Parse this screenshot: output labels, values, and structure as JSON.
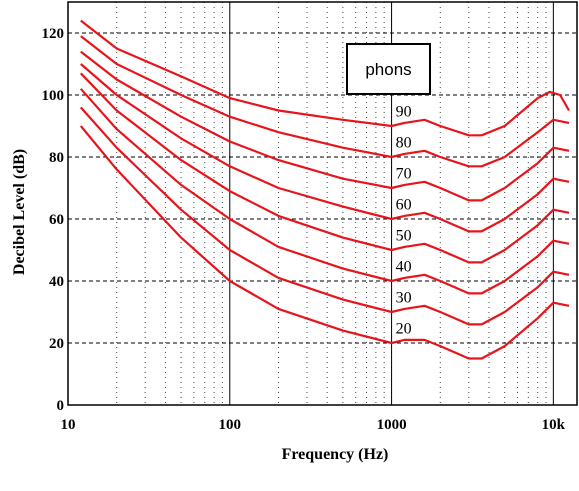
{
  "chart_data": {
    "type": "line",
    "xscale": "log",
    "xlabel": "Frequency (Hz)",
    "ylabel": "Decibel Level (dB)",
    "xlim": [
      10,
      14000
    ],
    "ylim": [
      0,
      130
    ],
    "x_ticks": [
      {
        "value": 10,
        "label": "10"
      },
      {
        "value": 100,
        "label": "100"
      },
      {
        "value": 1000,
        "label": "1000"
      },
      {
        "value": 10000,
        "label": "10k"
      }
    ],
    "y_ticks": [
      {
        "value": 0,
        "label": "0"
      },
      {
        "value": 20,
        "label": "20"
      },
      {
        "value": 40,
        "label": "40"
      },
      {
        "value": 60,
        "label": "60"
      },
      {
        "value": 80,
        "label": "80"
      },
      {
        "value": 100,
        "label": "100"
      },
      {
        "value": 120,
        "label": "120"
      }
    ],
    "grid": true,
    "legend": {
      "title": "phons",
      "placement": "top-center"
    },
    "line_color": "#e8141b",
    "series": [
      {
        "label": "20",
        "label_at": [
          1000,
          25
        ],
        "points": [
          [
            12,
            90
          ],
          [
            20,
            76
          ],
          [
            50,
            54
          ],
          [
            100,
            40
          ],
          [
            200,
            31
          ],
          [
            500,
            24
          ],
          [
            1000,
            20
          ],
          [
            1200,
            21
          ],
          [
            1600,
            21
          ],
          [
            2000,
            19
          ],
          [
            3000,
            15
          ],
          [
            3600,
            15
          ],
          [
            5000,
            19
          ],
          [
            8000,
            28
          ],
          [
            10000,
            33
          ],
          [
            12500,
            32
          ]
        ]
      },
      {
        "label": "30",
        "label_at": [
          1000,
          35
        ],
        "points": [
          [
            12,
            96
          ],
          [
            20,
            83
          ],
          [
            50,
            63
          ],
          [
            100,
            50
          ],
          [
            200,
            41
          ],
          [
            500,
            34
          ],
          [
            1000,
            30
          ],
          [
            1200,
            31
          ],
          [
            1600,
            32
          ],
          [
            2000,
            30
          ],
          [
            3000,
            26
          ],
          [
            3600,
            26
          ],
          [
            5000,
            30
          ],
          [
            8000,
            38
          ],
          [
            10000,
            43
          ],
          [
            12500,
            42
          ]
        ]
      },
      {
        "label": "40",
        "label_at": [
          1000,
          45
        ],
        "points": [
          [
            12,
            102
          ],
          [
            20,
            89
          ],
          [
            50,
            71
          ],
          [
            100,
            60
          ],
          [
            200,
            51
          ],
          [
            500,
            44
          ],
          [
            1000,
            40
          ],
          [
            1200,
            41
          ],
          [
            1600,
            42
          ],
          [
            2000,
            40
          ],
          [
            3000,
            36
          ],
          [
            3600,
            36
          ],
          [
            5000,
            40
          ],
          [
            8000,
            48
          ],
          [
            10000,
            53
          ],
          [
            12500,
            52
          ]
        ]
      },
      {
        "label": "50",
        "label_at": [
          1000,
          55
        ],
        "points": [
          [
            12,
            107
          ],
          [
            20,
            95
          ],
          [
            50,
            79
          ],
          [
            100,
            69
          ],
          [
            200,
            61
          ],
          [
            500,
            54
          ],
          [
            1000,
            50
          ],
          [
            1200,
            51
          ],
          [
            1600,
            52
          ],
          [
            2000,
            50
          ],
          [
            3000,
            46
          ],
          [
            3600,
            46
          ],
          [
            5000,
            50
          ],
          [
            8000,
            58
          ],
          [
            10000,
            63
          ],
          [
            12500,
            62
          ]
        ]
      },
      {
        "label": "60",
        "label_at": [
          1000,
          65
        ],
        "points": [
          [
            12,
            110
          ],
          [
            20,
            100
          ],
          [
            50,
            86
          ],
          [
            100,
            77
          ],
          [
            200,
            70
          ],
          [
            500,
            64
          ],
          [
            1000,
            60
          ],
          [
            1200,
            61
          ],
          [
            1600,
            62
          ],
          [
            2000,
            60
          ],
          [
            3000,
            56
          ],
          [
            3600,
            56
          ],
          [
            5000,
            60
          ],
          [
            8000,
            68
          ],
          [
            10000,
            73
          ],
          [
            12500,
            72
          ]
        ]
      },
      {
        "label": "70",
        "label_at": [
          1000,
          75
        ],
        "points": [
          [
            12,
            114
          ],
          [
            20,
            105
          ],
          [
            50,
            93
          ],
          [
            100,
            85
          ],
          [
            200,
            79
          ],
          [
            500,
            73
          ],
          [
            1000,
            70
          ],
          [
            1200,
            71
          ],
          [
            1600,
            72
          ],
          [
            2000,
            70
          ],
          [
            3000,
            66
          ],
          [
            3600,
            66
          ],
          [
            5000,
            70
          ],
          [
            8000,
            78
          ],
          [
            10000,
            83
          ],
          [
            12500,
            82
          ]
        ]
      },
      {
        "label": "80",
        "label_at": [
          1000,
          85
        ],
        "points": [
          [
            12,
            119
          ],
          [
            20,
            110
          ],
          [
            50,
            100
          ],
          [
            100,
            93
          ],
          [
            200,
            88
          ],
          [
            500,
            83
          ],
          [
            1000,
            80
          ],
          [
            1200,
            81
          ],
          [
            1600,
            82
          ],
          [
            2000,
            80
          ],
          [
            3000,
            77
          ],
          [
            3600,
            77
          ],
          [
            5000,
            80
          ],
          [
            8000,
            88
          ],
          [
            10000,
            92
          ],
          [
            12500,
            91
          ]
        ]
      },
      {
        "label": "90",
        "label_at": [
          1000,
          95
        ],
        "points": [
          [
            12,
            124
          ],
          [
            20,
            115
          ],
          [
            50,
            106
          ],
          [
            100,
            99
          ],
          [
            200,
            95
          ],
          [
            500,
            92
          ],
          [
            1000,
            90
          ],
          [
            1200,
            91
          ],
          [
            1600,
            92
          ],
          [
            2000,
            90
          ],
          [
            3000,
            87
          ],
          [
            3600,
            87
          ],
          [
            5000,
            90
          ],
          [
            8000,
            99
          ],
          [
            9500,
            101
          ],
          [
            11000,
            100
          ],
          [
            12500,
            95
          ]
        ]
      }
    ]
  }
}
